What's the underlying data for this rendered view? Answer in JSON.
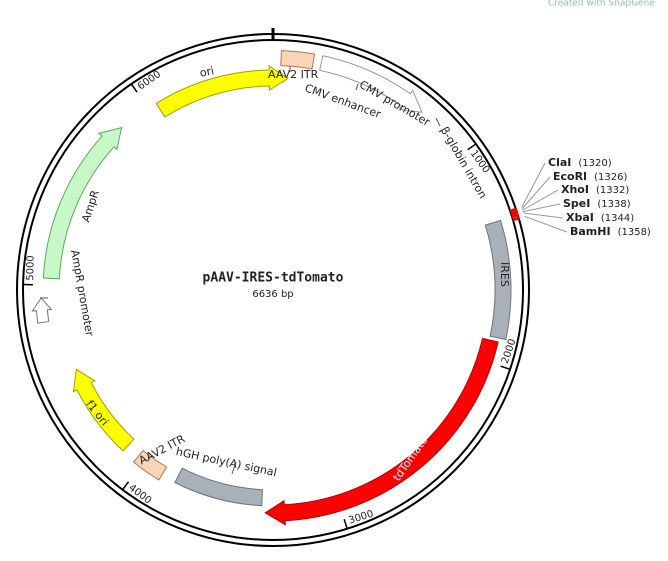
{
  "watermark": "Created with SnapGene",
  "plasmid": {
    "name": "pAAV-IRES-tdTomato",
    "length": {
      "value": 6636,
      "label": "6636 bp"
    }
  },
  "ticks": [
    1000,
    2000,
    3000,
    4000,
    5000,
    6000
  ],
  "features": [
    {
      "label": "AAV2 ITR"
    },
    {
      "label": "CMV enhancer"
    },
    {
      "label": "CMV promoter"
    },
    {
      "label": "ori"
    },
    {
      "label": "β-globin intron"
    },
    {
      "label": "IRES"
    },
    {
      "label": "tdTomato"
    },
    {
      "label": "hGH poly(A) signal"
    },
    {
      "label": "AAV2 ITR"
    },
    {
      "label": "f1 ori"
    },
    {
      "label": "AmpR"
    },
    {
      "label": "AmpR promoter"
    }
  ],
  "sites": [
    {
      "name": "ClaI",
      "position": {
        "value": 1320,
        "label": "(1320)"
      }
    },
    {
      "name": "EcoRI",
      "position": {
        "value": 1326,
        "label": "(1326)"
      }
    },
    {
      "name": "XhoI",
      "position": {
        "value": 1332,
        "label": "(1332)"
      }
    },
    {
      "name": "SpeI",
      "position": {
        "value": 1338,
        "label": "(1338)"
      }
    },
    {
      "name": "XbaI",
      "position": {
        "value": 1344,
        "label": "(1344)"
      }
    },
    {
      "name": "BamHI",
      "position": {
        "value": 1358,
        "label": "(1358)"
      }
    }
  ]
}
